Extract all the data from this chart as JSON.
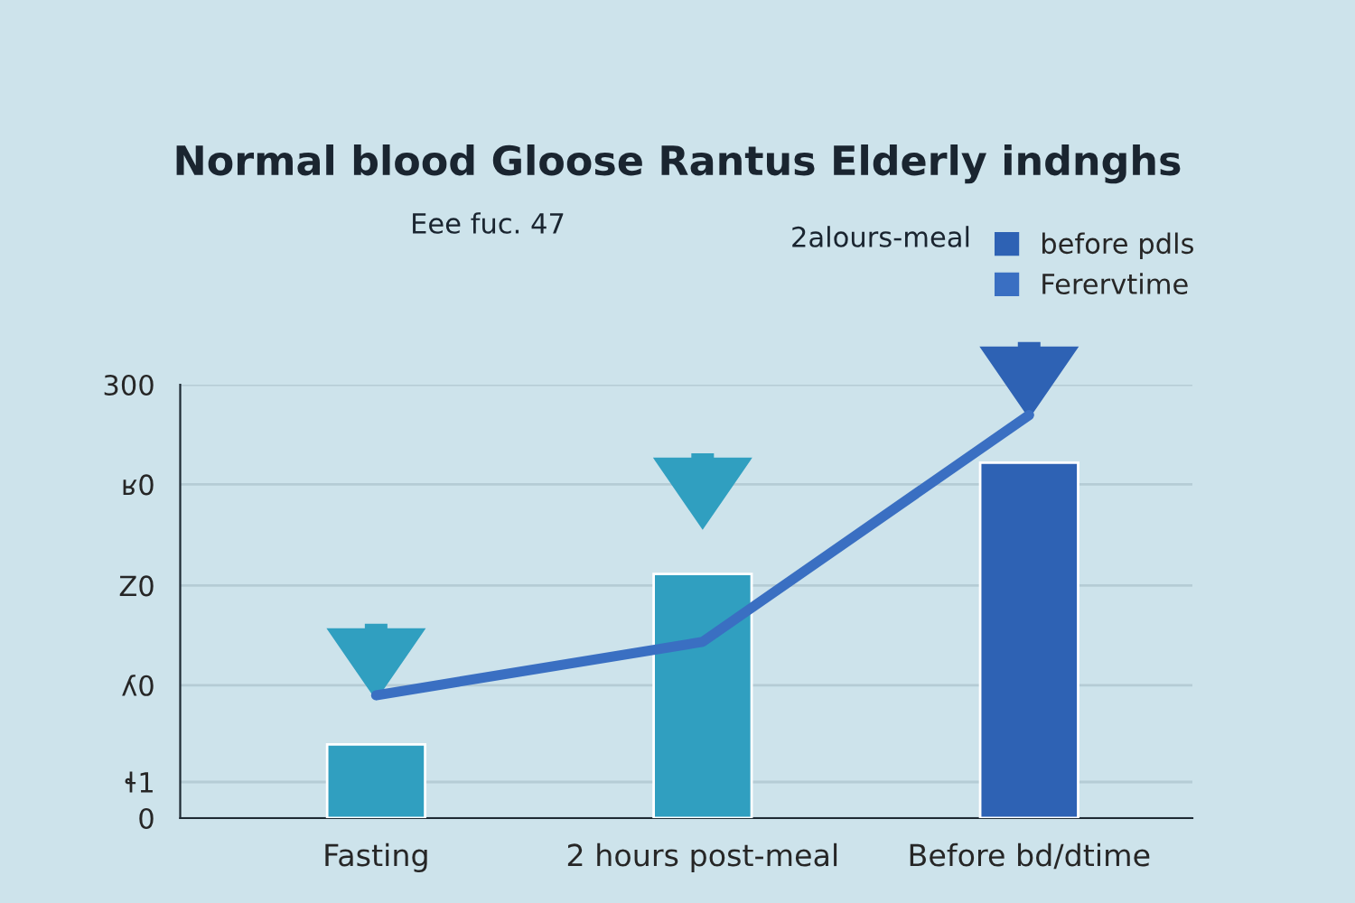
{
  "chart_data": {
    "type": "bar",
    "title": "Normal blood Gloose Rantus Elderly indnghs",
    "categories": [
      "Fasting",
      "2 hours post-meal",
      "Before bd/dtime"
    ],
    "series": [
      {
        "name": "before pdls",
        "colors": [
          "#309fc0",
          "#309fc0",
          "#2e62b4"
        ],
        "color": "#2e62b4",
        "values": [
          51,
          169,
          246
        ]
      },
      {
        "name": "Ferervtime",
        "type": "line",
        "color": "#3a6fc2",
        "values": [
          85,
          122,
          279
        ]
      }
    ],
    "annotations": [
      "Eee fuc. 47",
      "2alours-meal"
    ],
    "ylim": [
      0,
      300
    ],
    "yticks": [
      0,
      {
        "value": 25,
        "label": "ɬ1"
      },
      {
        "value": 92,
        "label": "ʎ0"
      },
      {
        "value": 161,
        "label": "Z0"
      },
      {
        "value": 231,
        "label": "ʁ0"
      },
      300
    ],
    "grid": "y",
    "legend": "top right"
  }
}
